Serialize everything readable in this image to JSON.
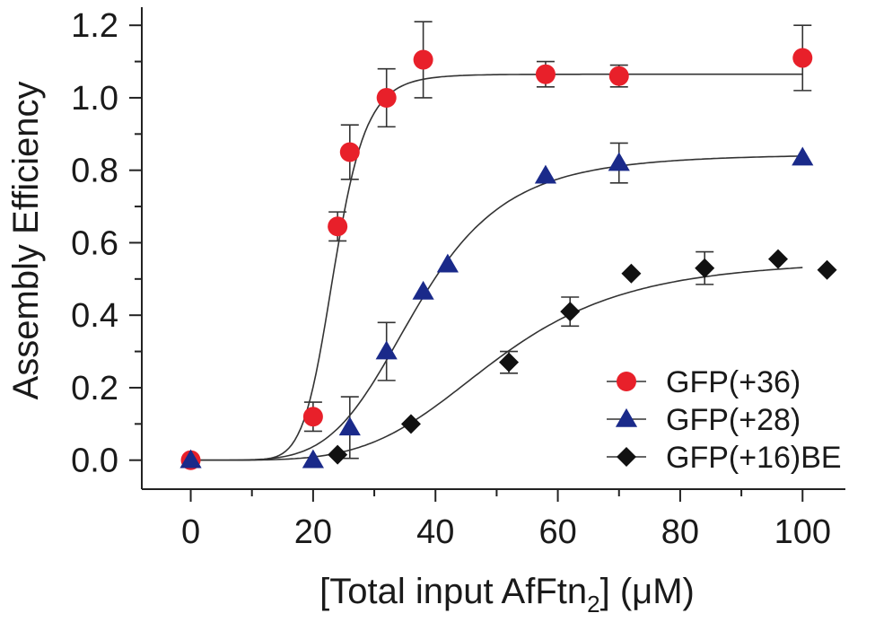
{
  "chart_data": {
    "type": "scatter",
    "xlabel": {
      "main": "[Total input AfFtn",
      "sub": "2",
      "tail": "] (μM)"
    },
    "ylabel": "Assembly Efficiency",
    "xlim": [
      -8,
      107
    ],
    "ylim": [
      -0.08,
      1.25
    ],
    "x_ticks": [
      "0",
      "20",
      "40",
      "60",
      "80",
      "100"
    ],
    "x_tick_values": [
      0,
      20,
      40,
      60,
      80,
      100
    ],
    "y_ticks": [
      "0.0",
      "0.2",
      "0.4",
      "0.6",
      "0.8",
      "1.0",
      "1.2"
    ],
    "y_tick_values": [
      0,
      0.2,
      0.4,
      0.6,
      0.8,
      1.0,
      1.2
    ],
    "grid": false,
    "legend_position": "bottom-right",
    "series": [
      {
        "name": "GFP(+36)",
        "marker": "circle",
        "color": "#e8202a",
        "x": [
          0,
          20,
          24,
          26,
          32,
          38,
          58,
          70,
          100
        ],
        "y": [
          0.0,
          0.12,
          0.645,
          0.85,
          1.0,
          1.105,
          1.065,
          1.06,
          1.11
        ],
        "err": [
          0,
          0.04,
          0.04,
          0.075,
          0.08,
          0.105,
          0.035,
          0.03,
          0.09
        ],
        "fit": {
          "top": 1.065,
          "ec50": 23.5,
          "hill": 9
        }
      },
      {
        "name": "GFP(+28)",
        "marker": "triangle",
        "color": "#1a2a8a",
        "x": [
          0,
          20,
          26,
          32,
          38,
          42,
          58,
          70,
          100
        ],
        "y": [
          0.0,
          0.0,
          0.09,
          0.3,
          0.465,
          0.54,
          0.785,
          0.82,
          0.835
        ],
        "err": [
          0,
          0,
          0.085,
          0.08,
          0,
          0,
          0,
          0.055,
          0
        ],
        "fit": {
          "top": 0.845,
          "ec50": 37.0,
          "hill": 5
        }
      },
      {
        "name": "GFP(+16)BE",
        "marker": "diamond",
        "color": "#111111",
        "x": [
          24,
          36,
          52,
          62,
          72,
          84,
          96,
          104
        ],
        "y": [
          0.015,
          0.1,
          0.27,
          0.41,
          0.515,
          0.53,
          0.555,
          0.525
        ],
        "err": [
          0,
          0,
          0.03,
          0.04,
          0,
          0.045,
          0,
          0
        ],
        "fit": {
          "top": 0.555,
          "ec50": 50.0,
          "hill": 4.5
        }
      }
    ]
  }
}
